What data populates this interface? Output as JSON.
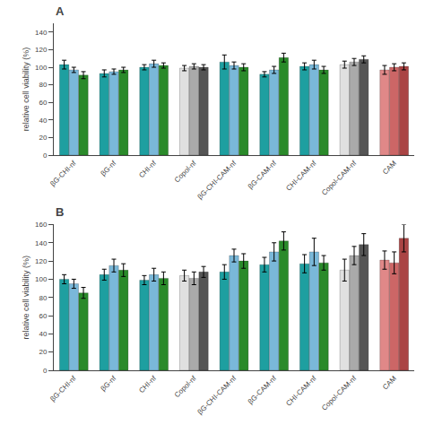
{
  "chart_data": [
    {
      "type": "bar",
      "title": "A",
      "ylabel": "relative cell viability (%)",
      "categories": [
        "βG-CHI-nf",
        "βG-nf",
        "CHI-nf",
        "Copol-nf",
        "βG-CHI-CAM-nf",
        "βG-CAM-nf",
        "CHI-CAM-nf",
        "Copol-CAM-nf",
        "CAM"
      ],
      "series": [
        {
          "values": [
            103,
            93,
            100,
            99,
            106,
            92,
            101,
            103,
            97
          ],
          "errors": [
            5,
            4,
            3,
            3,
            8,
            3,
            4,
            4,
            5
          ],
          "colors": [
            "#1e9fa0",
            "#1e9fa0",
            "#1e9fa0",
            "#e0e0e0",
            "#1e9fa0",
            "#1e9fa0",
            "#1e9fa0",
            "#e0e0e0",
            "#e08888"
          ]
        },
        {
          "values": [
            97,
            95,
            104,
            101,
            102,
            97,
            103,
            106,
            100
          ],
          "errors": [
            3,
            3,
            4,
            3,
            4,
            4,
            5,
            4,
            4
          ],
          "colors": [
            "#7ab8d9",
            "#7ab8d9",
            "#7ab8d9",
            "#aaaaaa",
            "#7ab8d9",
            "#7ab8d9",
            "#7ab8d9",
            "#aaaaaa",
            "#cc6666"
          ]
        },
        {
          "values": [
            91,
            97,
            102,
            100,
            100,
            111,
            97,
            109,
            101
          ],
          "errors": [
            4,
            3,
            3,
            3,
            4,
            5,
            4,
            4,
            4
          ],
          "colors": [
            "#2a8a2a",
            "#2a8a2a",
            "#2a8a2a",
            "#555555",
            "#2a8a2a",
            "#2a8a2a",
            "#2a8a2a",
            "#555555",
            "#aa4444"
          ]
        }
      ],
      "ylim": [
        0,
        150
      ],
      "yticks": [
        0,
        20,
        40,
        60,
        80,
        100,
        120,
        140
      ],
      "grid": false
    },
    {
      "type": "bar",
      "title": "B",
      "ylabel": "relative cell viability (%)",
      "categories": [
        "βG-CHI-nf",
        "βG-nf",
        "CHI-nf",
        "Copol-nf",
        "βG-CHI-CAM-nf",
        "βG-CAM-nf",
        "CHI-CAM-nf",
        "Copol-CAM-nf",
        "CAM"
      ],
      "series": [
        {
          "values": [
            100,
            105,
            99,
            104,
            108,
            116,
            117,
            110,
            121
          ],
          "errors": [
            5,
            6,
            5,
            6,
            8,
            8,
            10,
            12,
            10
          ],
          "colors": [
            "#1e9fa0",
            "#1e9fa0",
            "#1e9fa0",
            "#e0e0e0",
            "#1e9fa0",
            "#1e9fa0",
            "#1e9fa0",
            "#e0e0e0",
            "#e08888"
          ]
        },
        {
          "values": [
            95,
            115,
            105,
            101,
            126,
            130,
            130,
            126,
            118
          ],
          "errors": [
            5,
            7,
            7,
            7,
            7,
            10,
            15,
            10,
            12
          ],
          "colors": [
            "#7ab8d9",
            "#7ab8d9",
            "#7ab8d9",
            "#aaaaaa",
            "#7ab8d9",
            "#7ab8d9",
            "#7ab8d9",
            "#aaaaaa",
            "#cc6666"
          ]
        },
        {
          "values": [
            85,
            110,
            101,
            108,
            120,
            142,
            118,
            138,
            145
          ],
          "errors": [
            6,
            7,
            7,
            6,
            8,
            10,
            8,
            12,
            15
          ],
          "colors": [
            "#2a8a2a",
            "#2a8a2a",
            "#2a8a2a",
            "#555555",
            "#2a8a2a",
            "#2a8a2a",
            "#2a8a2a",
            "#555555",
            "#aa4444"
          ]
        }
      ],
      "ylim": [
        0,
        160
      ],
      "yticks": [
        0,
        20,
        40,
        60,
        80,
        100,
        120,
        140,
        160
      ],
      "grid": false
    }
  ]
}
